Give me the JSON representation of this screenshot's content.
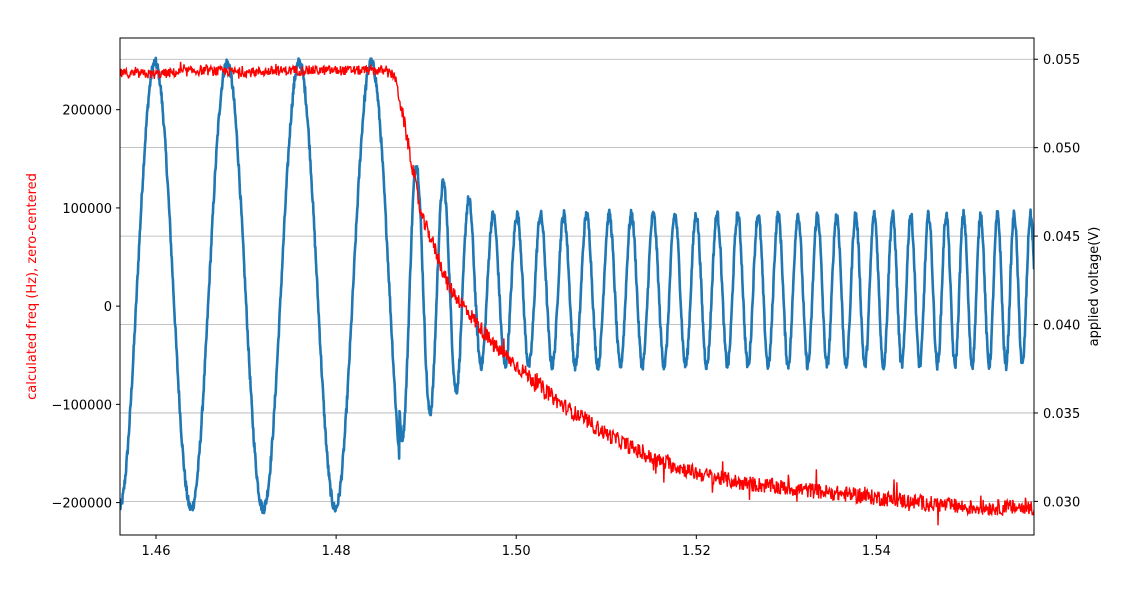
{
  "chart_data": {
    "type": "line",
    "title": "",
    "xlabel": "",
    "ylabel_left": "calculated freq (Hz), zero-centered",
    "ylabel_right": "applied voltage(V)",
    "xlim": [
      1.456,
      1.5575
    ],
    "ylim_left": [
      -233000,
      273000
    ],
    "ylim_right": [
      0.0281,
      0.0562
    ],
    "x_ticks": [
      1.46,
      1.48,
      1.5,
      1.52,
      1.54
    ],
    "x_tick_labels": [
      "1.46",
      "1.48",
      "1.50",
      "1.52",
      "1.54"
    ],
    "y_left_ticks": [
      -200000,
      -100000,
      0,
      100000,
      200000
    ],
    "y_left_tick_labels": [
      "−200000",
      "−100000",
      "0",
      "100000",
      "200000"
    ],
    "y_right_ticks": [
      0.03,
      0.035,
      0.04,
      0.045,
      0.05,
      0.055
    ],
    "y_right_tick_labels": [
      "0.030",
      "0.035",
      "0.040",
      "0.045",
      "0.050",
      "0.055"
    ],
    "grid": "right-axis horizontal lines",
    "legend": "none",
    "colors": {
      "left_axis_label": "#ff0000",
      "freq": "#ff0000",
      "voltage": "#1f77b4",
      "grid": "#b0b0b0"
    },
    "series": [
      {
        "axis": "left",
        "color": "#ff0000",
        "x": [
          1.456,
          1.46,
          1.465,
          1.47,
          1.475,
          1.48,
          1.485,
          1.4865,
          1.4875,
          1.4885,
          1.4895,
          1.4905,
          1.4925,
          1.495,
          1.4975,
          1.5,
          1.5025,
          1.505,
          1.51,
          1.515,
          1.52,
          1.525,
          1.53,
          1.535,
          1.54,
          1.545,
          1.55,
          1.5575
        ],
        "y": [
          237000,
          236000,
          240000,
          238000,
          240000,
          240000,
          240000,
          235000,
          190000,
          140000,
          90000,
          70000,
          20000,
          -10000,
          -40000,
          -60000,
          -80000,
          -100000,
          -130000,
          -155000,
          -170000,
          -180000,
          -185000,
          -190000,
          -195000,
          -200000,
          -205000,
          -205000
        ],
        "noise": [
          5000,
          5000,
          5000,
          5000,
          5000,
          5000,
          5000,
          5000,
          8000,
          8000,
          8000,
          8000,
          8000,
          8000,
          8000,
          8000,
          8000,
          8000,
          8000,
          8000,
          8000,
          8000,
          8000,
          8000,
          8000,
          8000,
          8000,
          8000
        ]
      },
      {
        "axis": "right",
        "color": "#1f77b4",
        "segments": [
          {
            "x_start": 1.456,
            "x_end": 1.487,
            "period": 0.008,
            "phase": 0.0019,
            "vmin": 0.0296,
            "vmax": 0.0548
          },
          {
            "x_start": 1.487,
            "x_end": 1.4955,
            "period_start": 0.0032,
            "period_end": 0.0027,
            "vmin_start": 0.0335,
            "vmin_end": 0.0372,
            "vmax_start": 0.0497,
            "vmax_end": 0.0468
          },
          {
            "x_start": 1.4955,
            "x_end": 1.5575,
            "period_start": 0.0027,
            "period_end": 0.0018,
            "vmin": 0.0377,
            "vmax": 0.0462
          }
        ]
      }
    ]
  }
}
